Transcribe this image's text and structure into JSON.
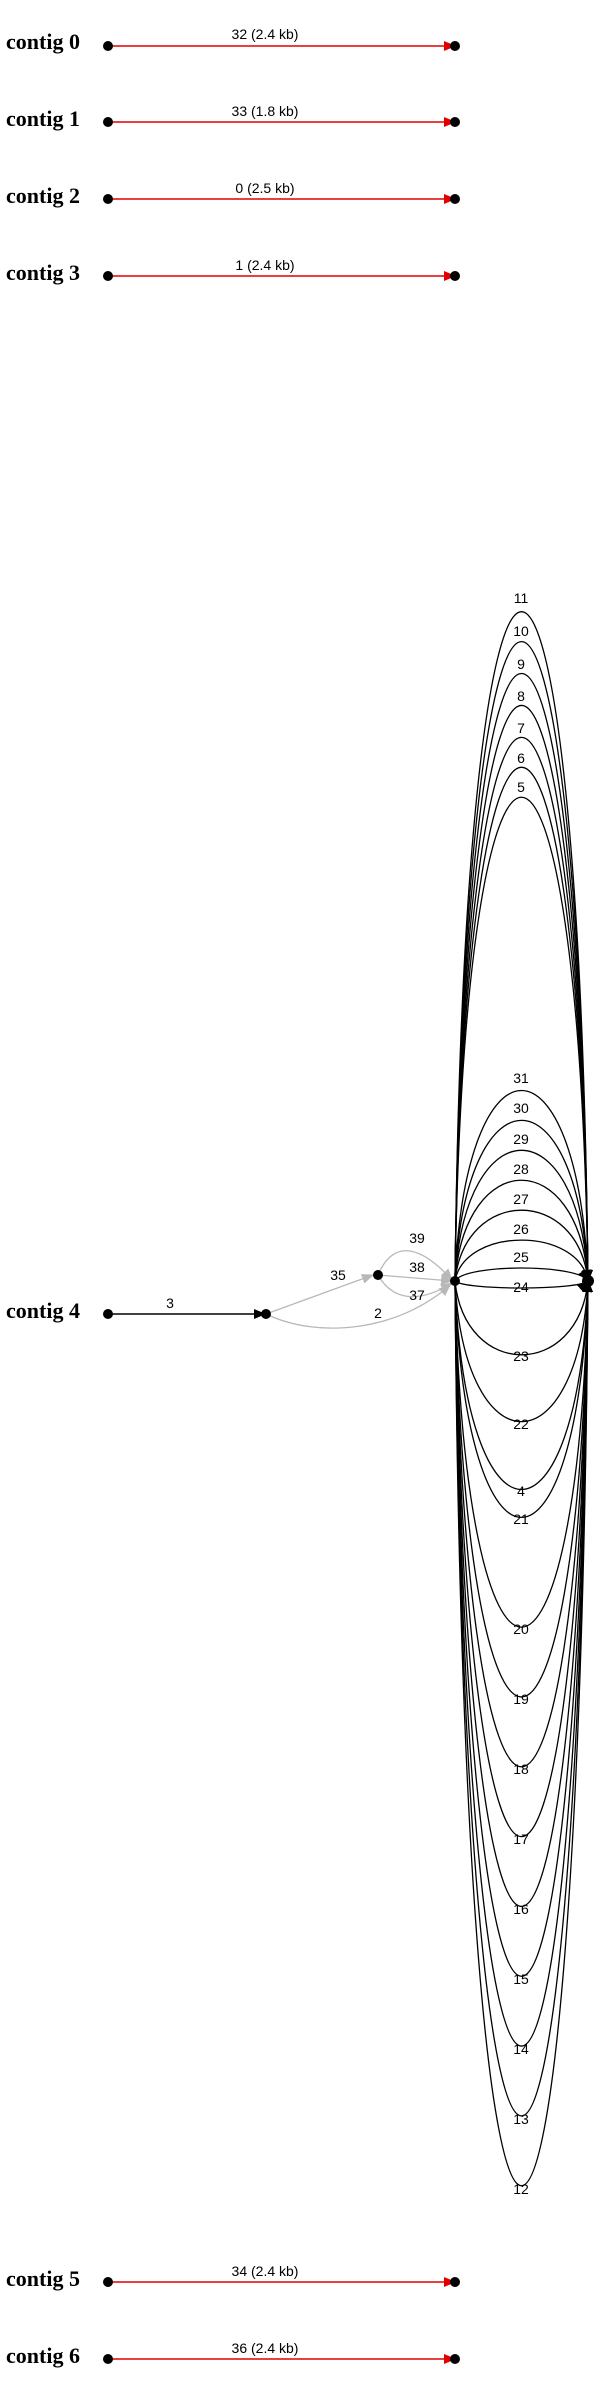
{
  "colors": {
    "red": "#e00000",
    "black": "#000000",
    "gray": "#b8b8b8"
  },
  "contigs": [
    {
      "label": "contig 0",
      "edge": "32 (2.4 kb)"
    },
    {
      "label": "contig 1",
      "edge": "33 (1.8 kb)"
    },
    {
      "label": "contig 2",
      "edge": "0 (2.5 kb)"
    },
    {
      "label": "contig 3",
      "edge": "1 (2.4 kb)"
    },
    {
      "label": "contig 5",
      "edge": "34 (2.4 kb)"
    },
    {
      "label": "contig 6",
      "edge": "36 (2.4 kb)"
    }
  ],
  "contig4": {
    "label": "contig 4",
    "edges": {
      "e3": "3",
      "e35": "35",
      "e2": "2",
      "e39": "39",
      "e38": "38",
      "e37": "37"
    },
    "bundle_edges": [
      "11",
      "10",
      "9",
      "8",
      "7",
      "6",
      "5",
      "31",
      "30",
      "29",
      "28",
      "27",
      "26",
      "25",
      "24",
      "23",
      "22",
      "4",
      "21",
      "20",
      "19",
      "18",
      "17",
      "16",
      "15",
      "14",
      "13",
      "12"
    ]
  }
}
